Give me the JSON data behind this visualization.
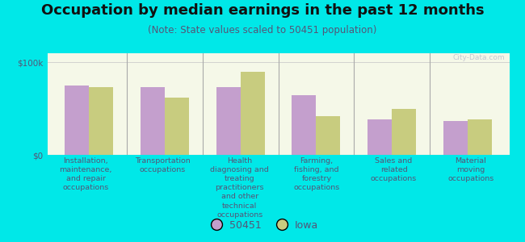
{
  "title": "Occupation by median earnings in the past 12 months",
  "subtitle": "(Note: State values scaled to 50451 population)",
  "background_color": "#00e8e8",
  "plot_bg_top": "#f5f8e8",
  "plot_bg_bottom": "#e8ecd8",
  "bar_color_50451": "#c49fcd",
  "bar_color_iowa": "#c8cc7f",
  "categories": [
    "Installation,\nmaintenance,\nand repair\noccupations",
    "Transportation\noccupations",
    "Health\ndiagnosing and\ntreating\npractitioners\nand other\ntechnical\noccupations",
    "Farming,\nfishing, and\nforestry\noccupations",
    "Sales and\nrelated\noccupations",
    "Material\nmoving\noccupations"
  ],
  "values_50451": [
    75000,
    73000,
    73000,
    65000,
    38000,
    37000
  ],
  "values_iowa": [
    73000,
    62000,
    90000,
    42000,
    50000,
    38000
  ],
  "ylim": [
    0,
    110000
  ],
  "yticks": [
    0,
    100000
  ],
  "ytick_labels": [
    "$0",
    "$100k"
  ],
  "legend_labels": [
    "50451",
    "Iowa"
  ],
  "watermark": "City-Data.com",
  "title_fontsize": 13,
  "subtitle_fontsize": 8.5,
  "tick_label_fontsize": 7.5,
  "cat_label_fontsize": 6.8,
  "axis_label_color": "#555577",
  "title_color": "#111111"
}
